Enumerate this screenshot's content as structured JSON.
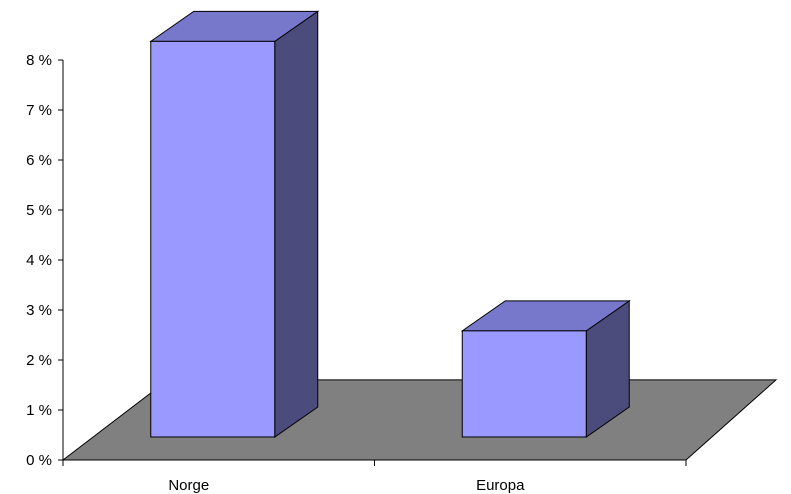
{
  "chart_data": {
    "type": "bar",
    "categories": [
      "Norge",
      "Europa"
    ],
    "values": [
      8.2,
      2.2
    ],
    "ylim": [
      0,
      8
    ],
    "yticks": [
      "0 %",
      "1 %",
      "2 %",
      "3 %",
      "4 %",
      "5 %",
      "6 %",
      "7 %",
      "8 %"
    ],
    "grid": false,
    "three_d": true,
    "colors": {
      "bar_front": "#9999ff",
      "bar_top": "#7777cc",
      "bar_side": "#4c4c7c",
      "floor": "#808080"
    }
  }
}
